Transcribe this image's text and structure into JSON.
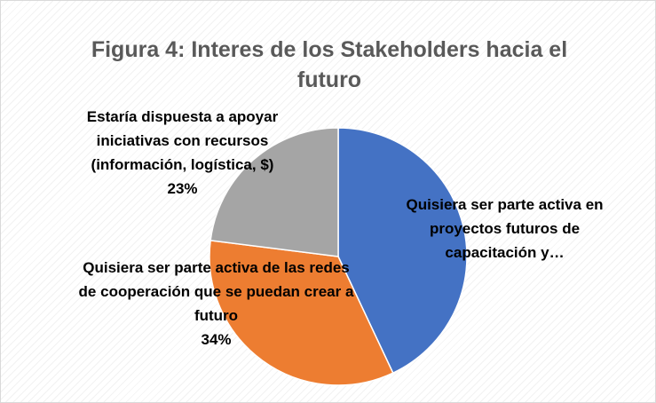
{
  "chart_data": {
    "type": "pie",
    "title": "Figura 4: Interes de los Stakeholders hacia el futuro",
    "categories": [
      "Quisiera ser parte activa en proyectos futuros de capacitación y…",
      "Quisiera ser parte activa de las redes de cooperación que se puedan crear a futuro",
      "Estaría dispuesta a apoyar iniciativas con recursos (información, logística, $)"
    ],
    "values": [
      43,
      34,
      23
    ],
    "value_labels": [
      null,
      "34%",
      "23%"
    ],
    "colors": [
      "#4472c4",
      "#ed7d31",
      "#a5a5a5"
    ]
  }
}
